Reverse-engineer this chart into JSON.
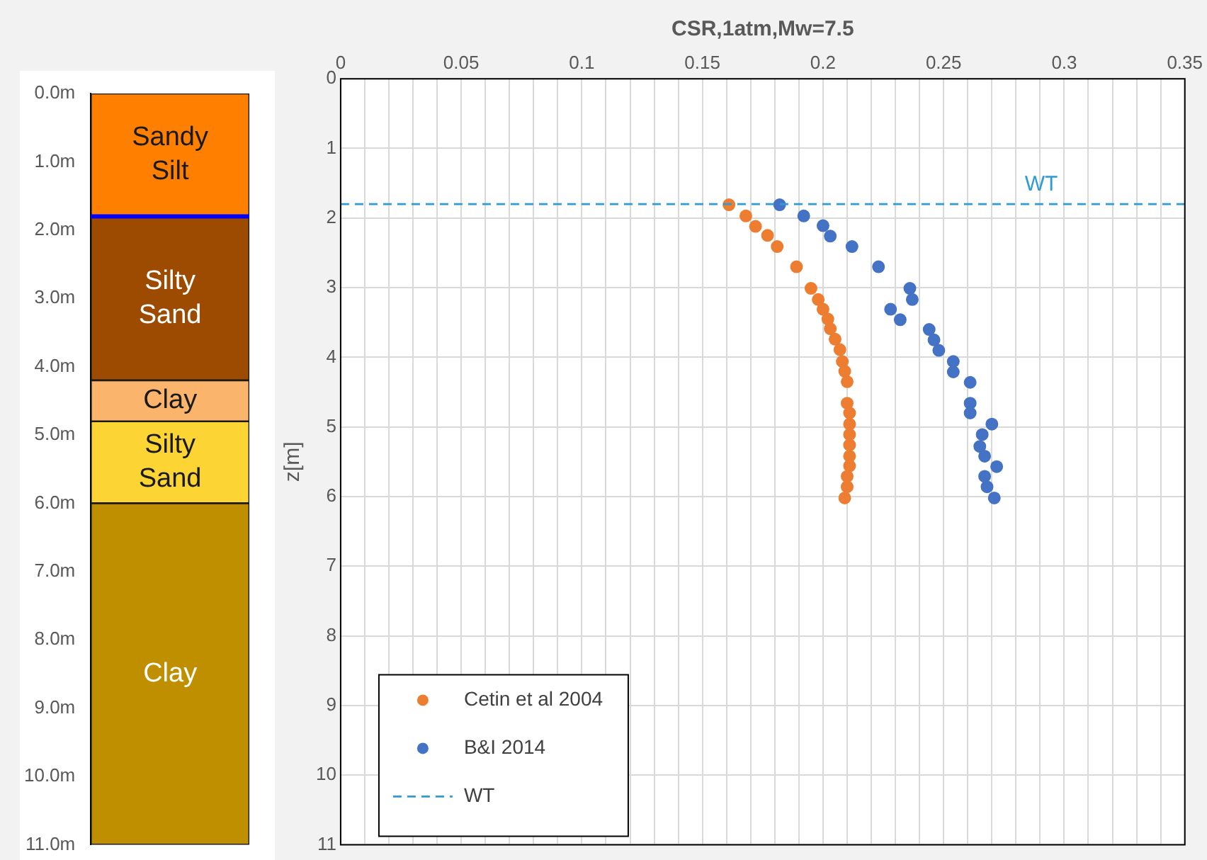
{
  "chart_data": [
    {
      "type": "bar",
      "stacked": true,
      "categories": [
        null
      ],
      "tick_labels": "y",
      "grid": false,
      "legend": false,
      "ylim": [
        11,
        0
      ],
      "yticks": [
        {
          "value": 0,
          "label": "0.0m"
        },
        {
          "value": 1,
          "label": "1.0m"
        },
        {
          "value": 2,
          "label": "2.0m"
        },
        {
          "value": 3,
          "label": "3.0m"
        },
        {
          "value": 4,
          "label": "4.0m"
        },
        {
          "value": 5,
          "label": "5.0m"
        },
        {
          "value": 6,
          "label": "6.0m"
        },
        {
          "value": 7,
          "label": "7.0m"
        },
        {
          "value": 8,
          "label": "8.0m"
        },
        {
          "value": 9,
          "label": "9.0m"
        },
        {
          "value": 10,
          "label": "10.0m"
        },
        {
          "value": 11,
          "label": "11.0m"
        }
      ],
      "series": [
        {
          "name": "Sandy Silt",
          "color": "#ff8000",
          "values": [
            1.8
          ]
        },
        {
          "name": "Silty Sand",
          "color": "#9c4b00",
          "values": [
            2.4
          ]
        },
        {
          "name": "Clay",
          "color": "#fbb46c",
          "values": [
            0.6
          ]
        },
        {
          "name": "Silty Sand",
          "color": "#fcd535",
          "values": [
            1.2
          ]
        },
        {
          "name": "Clay",
          "color": "#bf8f00",
          "values": [
            5
          ]
        }
      ],
      "ref_lines": [
        {
          "axis": "y",
          "value": 1.8,
          "color": "#0000ff"
        }
      ]
    },
    {
      "type": "scatter",
      "xlabel": "CSR,1atm,Mw=7.5",
      "ylabel": "z[m]",
      "marker": "circle",
      "grid": true,
      "legend": "bottom left",
      "xlim": [
        0,
        0.35
      ],
      "ylim": [
        11,
        0
      ],
      "xticks": [
        0,
        {
          "value": 0.01,
          "label": null
        },
        {
          "value": 0.02,
          "label": null
        },
        {
          "value": 0.03,
          "label": null
        },
        {
          "value": 0.04,
          "label": null
        },
        0.05,
        {
          "value": 0.06,
          "label": null
        },
        {
          "value": 0.07,
          "label": null
        },
        {
          "value": 0.08,
          "label": null
        },
        {
          "value": 0.09,
          "label": null
        },
        0.1,
        {
          "value": 0.11,
          "label": null
        },
        {
          "value": 0.12,
          "label": null
        },
        {
          "value": 0.13,
          "label": null
        },
        {
          "value": 0.14,
          "label": null
        },
        0.15,
        {
          "value": 0.16,
          "label": null
        },
        {
          "value": 0.17,
          "label": null
        },
        {
          "value": 0.18,
          "label": null
        },
        {
          "value": 0.19,
          "label": null
        },
        0.2,
        {
          "value": 0.21,
          "label": null
        },
        {
          "value": 0.22,
          "label": null
        },
        {
          "value": 0.23,
          "label": null
        },
        {
          "value": 0.24,
          "label": null
        },
        0.25,
        {
          "value": 0.26,
          "label": null
        },
        {
          "value": 0.27,
          "label": null
        },
        {
          "value": 0.28,
          "label": null
        },
        {
          "value": 0.29,
          "label": null
        },
        0.3,
        {
          "value": 0.31,
          "label": null
        },
        {
          "value": 0.32,
          "label": null
        },
        {
          "value": 0.33,
          "label": null
        },
        {
          "value": 0.34,
          "label": null
        },
        0.35
      ],
      "yticks": [
        0,
        1,
        2,
        3,
        4,
        5,
        6,
        7,
        8,
        9,
        10,
        11
      ],
      "series": [
        {
          "name": "Cetin et al 2004",
          "color": "#ed7d31",
          "x": [
            0.161,
            0.168,
            0.172,
            0.177,
            0.181,
            0.189,
            0.195,
            0.198,
            0.2,
            0.202,
            0.203,
            0.205,
            0.207,
            0.208,
            0.209,
            0.21,
            0.21,
            0.211,
            0.211,
            0.211,
            0.211,
            0.211,
            0.211,
            0.21,
            0.21,
            0.209
          ],
          "values": [
            1.81,
            1.97,
            2.12,
            2.25,
            2.41,
            2.7,
            3.01,
            3.17,
            3.31,
            3.45,
            3.59,
            3.74,
            3.89,
            4.06,
            4.2,
            4.35,
            4.66,
            4.8,
            4.96,
            5.11,
            5.26,
            5.42,
            5.56,
            5.71,
            5.86,
            6.02
          ]
        },
        {
          "name": "B&I 2014",
          "color": "#4472c4",
          "x": [
            0.182,
            0.192,
            0.2,
            0.203,
            0.212,
            0.223,
            0.236,
            0.237,
            0.228,
            0.232,
            0.244,
            0.246,
            0.248,
            0.254,
            0.254,
            0.261,
            0.261,
            0.261,
            0.27,
            0.266,
            0.265,
            0.267,
            0.272,
            0.267,
            0.268,
            0.271
          ],
          "values": [
            1.81,
            1.97,
            2.11,
            2.26,
            2.41,
            2.7,
            3.01,
            3.17,
            3.31,
            3.46,
            3.6,
            3.75,
            3.9,
            4.06,
            4.21,
            4.36,
            4.66,
            4.8,
            4.96,
            5.11,
            5.28,
            5.42,
            5.57,
            5.71,
            5.86,
            6.02
          ]
        }
      ],
      "ref_lines": [
        {
          "axis": "y",
          "value": 1.8,
          "label": "WT",
          "color": "#2e9bd6",
          "line_style": "dashed"
        }
      ]
    }
  ]
}
